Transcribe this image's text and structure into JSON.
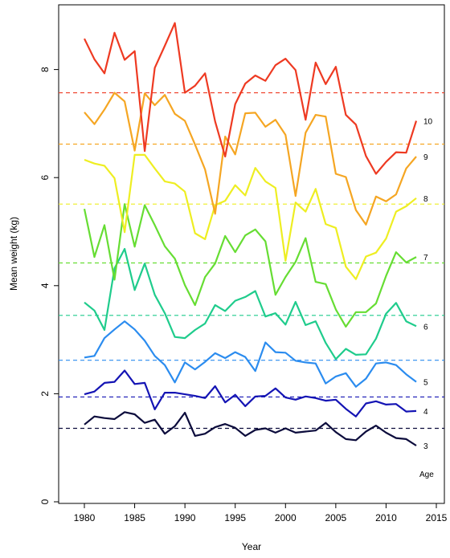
{
  "chart_data": {
    "type": "line",
    "xlabel": "Year",
    "ylabel": "Mean weight (kg)",
    "legend_title": "Age",
    "xlim": [
      1978,
      2015
    ],
    "ylim": [
      0,
      9.3
    ],
    "x_ticks": [
      1980,
      1985,
      1990,
      1995,
      2000,
      2005,
      2010,
      2015
    ],
    "y_ticks": [
      0,
      2,
      4,
      6,
      8
    ],
    "grid": false,
    "x": [
      1980,
      1981,
      1982,
      1983,
      1984,
      1985,
      1986,
      1987,
      1988,
      1989,
      1990,
      1991,
      1992,
      1993,
      1994,
      1995,
      1996,
      1997,
      1998,
      1999,
      2000,
      2001,
      2002,
      2003,
      2004,
      2005,
      2006,
      2007,
      2008,
      2009,
      2010,
      2011,
      2012,
      2013
    ],
    "series": [
      {
        "name": "3",
        "color": "#0c0c3c",
        "mean": 1.36,
        "values": [
          1.43,
          1.58,
          1.55,
          1.53,
          1.66,
          1.62,
          1.46,
          1.52,
          1.26,
          1.4,
          1.65,
          1.22,
          1.26,
          1.38,
          1.44,
          1.37,
          1.22,
          1.33,
          1.36,
          1.28,
          1.36,
          1.28,
          1.3,
          1.32,
          1.46,
          1.29,
          1.16,
          1.14,
          1.3,
          1.41,
          1.28,
          1.18,
          1.16,
          1.04
        ]
      },
      {
        "name": "4",
        "color": "#1414b4",
        "mean": 1.94,
        "values": [
          1.99,
          2.04,
          2.2,
          2.22,
          2.43,
          2.18,
          2.2,
          1.71,
          2.02,
          2.02,
          1.99,
          1.96,
          1.92,
          2.14,
          1.84,
          1.98,
          1.77,
          1.95,
          1.96,
          2.1,
          1.93,
          1.89,
          1.95,
          1.92,
          1.87,
          1.89,
          1.72,
          1.58,
          1.82,
          1.86,
          1.8,
          1.81,
          1.67,
          1.68
        ]
      },
      {
        "name": "5",
        "color": "#2b8cef",
        "mean": 2.62,
        "values": [
          2.67,
          2.7,
          3.03,
          3.19,
          3.34,
          3.19,
          2.98,
          2.7,
          2.53,
          2.21,
          2.58,
          2.45,
          2.59,
          2.75,
          2.66,
          2.77,
          2.68,
          2.42,
          2.95,
          2.77,
          2.76,
          2.61,
          2.58,
          2.56,
          2.19,
          2.32,
          2.38,
          2.13,
          2.28,
          2.56,
          2.58,
          2.53,
          2.36,
          2.22
        ]
      },
      {
        "name": "6",
        "color": "#1fcc8c",
        "mean": 3.45,
        "values": [
          3.69,
          3.54,
          3.18,
          4.32,
          4.68,
          3.92,
          4.41,
          3.83,
          3.49,
          3.05,
          3.03,
          3.18,
          3.3,
          3.64,
          3.53,
          3.72,
          3.79,
          3.9,
          3.43,
          3.49,
          3.28,
          3.7,
          3.27,
          3.34,
          2.94,
          2.64,
          2.83,
          2.72,
          2.73,
          3.02,
          3.48,
          3.68,
          3.34,
          3.25
        ]
      },
      {
        "name": "7",
        "color": "#66dd33",
        "mean": 4.42,
        "values": [
          5.42,
          4.53,
          5.12,
          4.11,
          5.51,
          4.72,
          5.49,
          5.12,
          4.73,
          4.5,
          4.01,
          3.64,
          4.16,
          4.41,
          4.92,
          4.62,
          4.93,
          5.04,
          4.82,
          3.83,
          4.16,
          4.44,
          4.88,
          4.07,
          4.03,
          3.56,
          3.24,
          3.51,
          3.51,
          3.67,
          4.18,
          4.62,
          4.43,
          4.53
        ]
      },
      {
        "name": "8",
        "color": "#eeee22",
        "mean": 5.51,
        "values": [
          6.33,
          6.26,
          6.22,
          5.99,
          4.99,
          6.42,
          6.42,
          6.17,
          5.93,
          5.89,
          5.74,
          4.97,
          4.86,
          5.49,
          5.57,
          5.86,
          5.67,
          6.18,
          5.93,
          5.81,
          4.46,
          5.54,
          5.37,
          5.79,
          5.14,
          5.07,
          4.35,
          4.12,
          4.54,
          4.61,
          4.87,
          5.37,
          5.47,
          5.62
        ]
      },
      {
        "name": "9",
        "color": "#f5a623",
        "mean": 6.62,
        "values": [
          7.21,
          6.99,
          7.26,
          7.57,
          7.41,
          6.5,
          7.56,
          7.34,
          7.53,
          7.18,
          7.05,
          6.61,
          6.15,
          5.33,
          6.76,
          6.43,
          7.19,
          7.2,
          6.94,
          7.07,
          6.79,
          5.66,
          6.83,
          7.16,
          7.13,
          6.07,
          6.01,
          5.4,
          5.13,
          5.65,
          5.56,
          5.69,
          6.17,
          6.39
        ]
      },
      {
        "name": "10",
        "color": "#ee3a22",
        "mean": 7.57,
        "values": [
          8.57,
          8.19,
          7.93,
          8.68,
          8.18,
          8.34,
          6.49,
          8.03,
          8.44,
          8.86,
          7.57,
          7.7,
          7.93,
          7.04,
          6.39,
          7.36,
          7.74,
          7.89,
          7.79,
          8.08,
          8.2,
          7.99,
          7.07,
          8.13,
          7.73,
          8.05,
          7.16,
          6.98,
          6.4,
          6.07,
          6.29,
          6.47,
          6.46,
          7.05
        ]
      }
    ]
  }
}
